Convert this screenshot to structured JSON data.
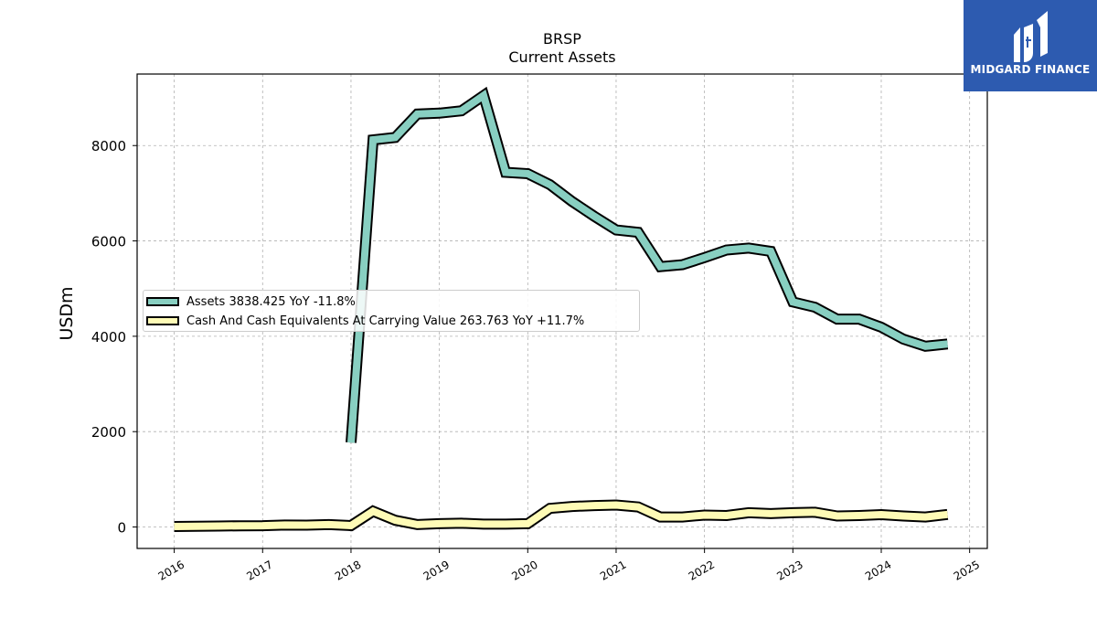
{
  "header": {
    "title": "BRSP",
    "subtitle": "Current  Assets"
  },
  "brand": {
    "name": "MIDGARD FINANCE",
    "background_color": "#2d5bb0"
  },
  "chart_data": {
    "type": "line",
    "ylabel": "USDm",
    "xlabel": "",
    "ylim": [
      -450,
      9500
    ],
    "xlim": [
      2015.58,
      2025.2
    ],
    "x_ticks": [
      2016,
      2017,
      2018,
      2019,
      2020,
      2021,
      2022,
      2023,
      2024,
      2025
    ],
    "x_tick_labels": [
      "2016",
      "2017",
      "2018",
      "2019",
      "2020",
      "2021",
      "2022",
      "2023",
      "2024",
      "2025"
    ],
    "y_ticks": [
      0,
      2000,
      4000,
      6000,
      8000
    ],
    "y_tick_labels": [
      "0",
      "2000",
      "4000",
      "6000",
      "8000"
    ],
    "grid": true,
    "legend_position": "center-left",
    "series": [
      {
        "name": "Assets",
        "legend_label": "Assets  3838.425 YoY -11.8%",
        "color": "#88cfc1",
        "x": [
          2018.0,
          2018.25,
          2018.5,
          2018.75,
          2019.0,
          2019.25,
          2019.5,
          2019.75,
          2020.0,
          2020.25,
          2020.5,
          2020.75,
          2021.0,
          2021.25,
          2021.5,
          2021.75,
          2022.0,
          2022.25,
          2022.5,
          2022.75,
          2023.0,
          2023.25,
          2023.5,
          2023.75,
          2024.0,
          2024.25,
          2024.5,
          2024.75
        ],
        "y": [
          1770,
          8120,
          8170,
          8660,
          8680,
          8730,
          9050,
          7440,
          7410,
          7180,
          6830,
          6520,
          6230,
          6180,
          5460,
          5500,
          5650,
          5810,
          5850,
          5780,
          4720,
          4610,
          4360,
          4360,
          4190,
          3940,
          3790,
          3838
        ]
      },
      {
        "name": "Cash And Cash Equivalents At Carrying Value",
        "legend_label": "Cash And Cash Equivalents At Carrying Value  263.763 YoY +11.7%",
        "color": "#fefbb6",
        "x": [
          2016.0,
          2016.25,
          2016.5,
          2016.75,
          2017.0,
          2017.25,
          2017.5,
          2017.75,
          2018.0,
          2018.25,
          2018.5,
          2018.75,
          2019.0,
          2019.25,
          2019.5,
          2019.75,
          2020.0,
          2020.25,
          2020.5,
          2020.75,
          2021.0,
          2021.25,
          2021.5,
          2021.75,
          2022.0,
          2022.25,
          2022.5,
          2022.75,
          2023.0,
          2023.25,
          2023.5,
          2023.75,
          2024.0,
          2024.25,
          2024.5,
          2024.75
        ],
        "y": [
          10,
          15,
          20,
          25,
          28,
          40,
          38,
          50,
          30,
          330,
          140,
          50,
          70,
          80,
          60,
          60,
          70,
          390,
          430,
          450,
          460,
          420,
          210,
          210,
          250,
          240,
          300,
          280,
          300,
          310,
          230,
          240,
          260,
          230,
          210,
          264
        ]
      }
    ]
  }
}
